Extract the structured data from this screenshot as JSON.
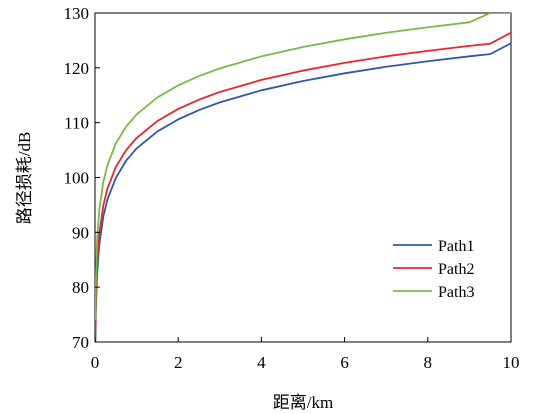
{
  "chart_data": {
    "type": "line",
    "title": "",
    "xlabel": "距离/km",
    "ylabel": "路径损耗/dB",
    "xlim": [
      0,
      10
    ],
    "ylim": [
      70,
      130
    ],
    "xticks": [
      0,
      2,
      4,
      6,
      8,
      10
    ],
    "yticks": [
      70,
      80,
      90,
      100,
      110,
      120,
      130
    ],
    "x_tick_labels": [
      "0",
      "2",
      "4",
      "6",
      "8",
      "10"
    ],
    "y_tick_labels": [
      "70",
      "80",
      "90",
      "100",
      "110",
      "120",
      "130"
    ],
    "grid": false,
    "legend_position": "lower-right",
    "x": [
      0.01,
      0.02,
      0.05,
      0.1,
      0.2,
      0.3,
      0.5,
      0.75,
      1,
      1.5,
      2,
      2.5,
      3,
      4,
      5,
      6,
      7,
      8,
      9,
      9.5,
      10
    ],
    "series": [
      {
        "name": "Path1",
        "color": "#2e59a8",
        "values": [
          70,
          75.3,
          82.3,
          87.6,
          92.9,
          96.0,
          99.9,
          103.1,
          105.3,
          108.4,
          110.6,
          112.3,
          113.7,
          115.9,
          117.6,
          119.0,
          120.2,
          121.2,
          122.1,
          122.5,
          124.5
        ]
      },
      {
        "name": "Path2",
        "color": "#e8262b",
        "values": [
          72.0,
          77.3,
          84.3,
          89.6,
          94.9,
          98.0,
          101.9,
          105.0,
          107.2,
          110.3,
          112.5,
          114.2,
          115.6,
          117.8,
          119.5,
          120.9,
          122.1,
          123.1,
          124.0,
          124.4,
          126.4
        ]
      },
      {
        "name": "Path3",
        "color": "#78bd43",
        "values": [
          74.0,
          80.8,
          88.6,
          93.9,
          99.2,
          102.3,
          106.2,
          109.3,
          111.5,
          114.6,
          116.8,
          118.5,
          119.9,
          122.1,
          123.8,
          125.2,
          126.4,
          127.4,
          128.3,
          130,
          130
        ]
      }
    ]
  }
}
